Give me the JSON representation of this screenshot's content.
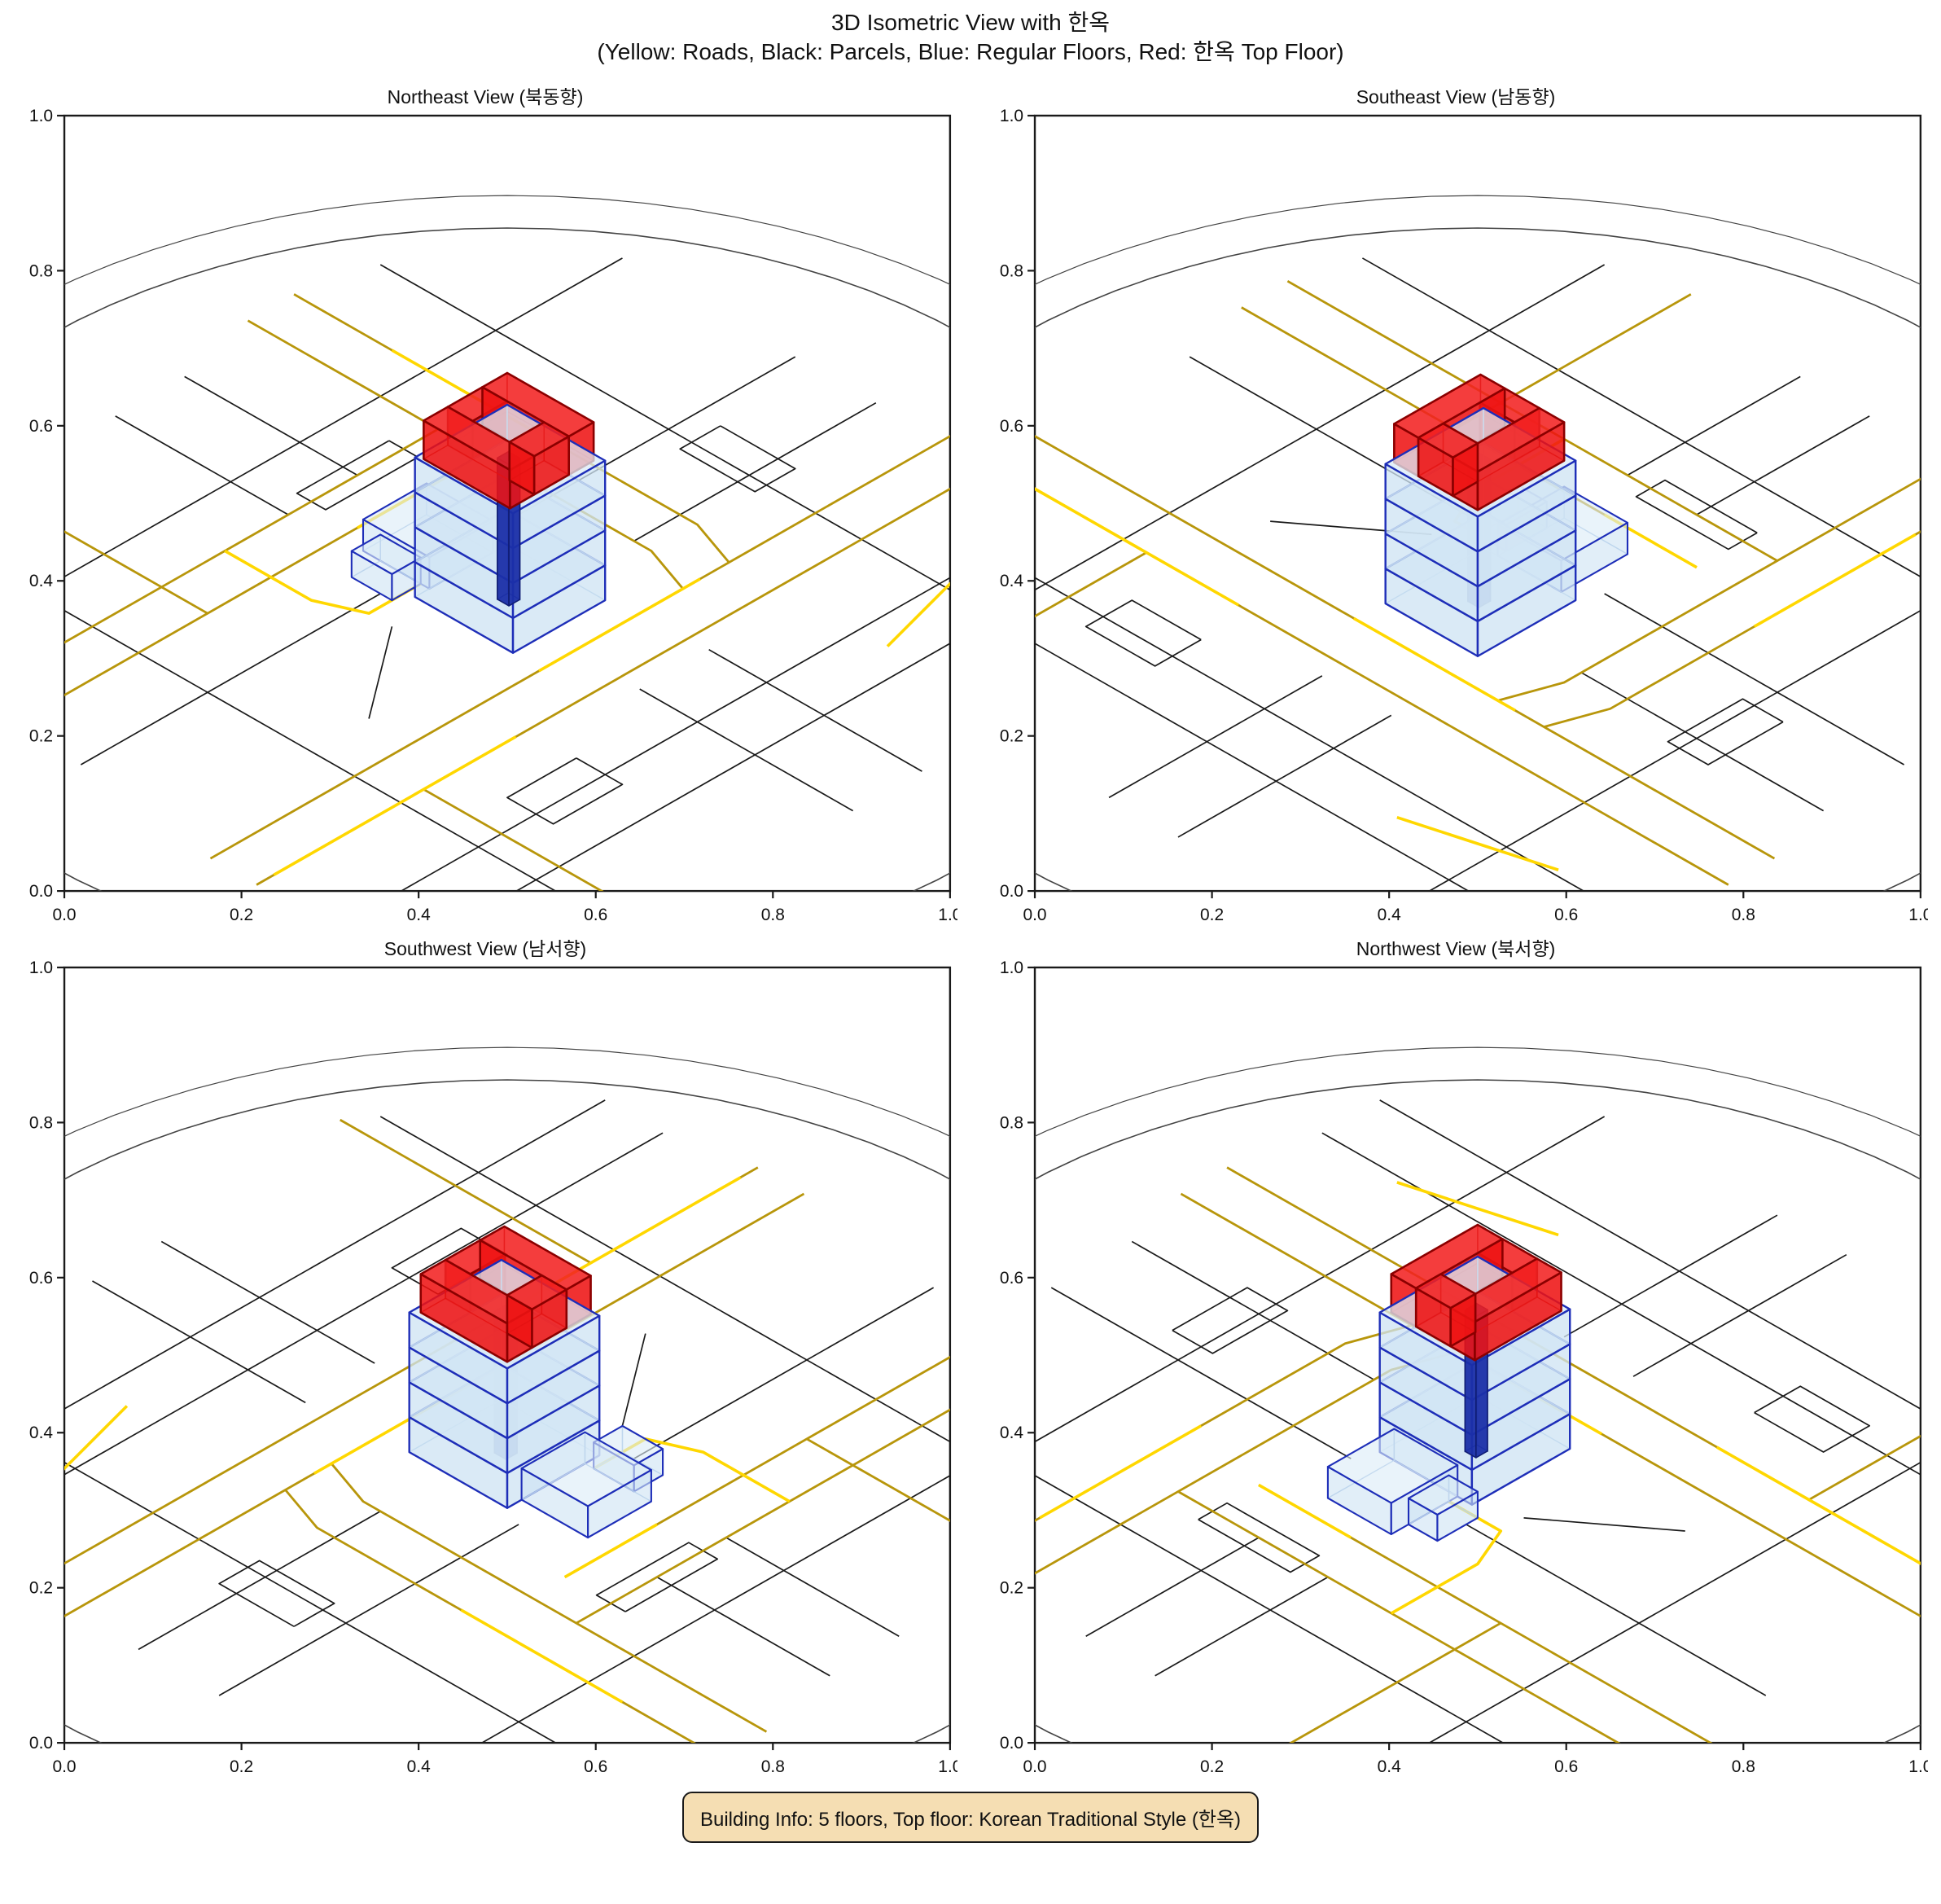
{
  "title": {
    "line1": "3D Isometric View with 한옥",
    "line2": "(Yellow: Roads, Black: Parcels, Blue: Regular Floors, Red: 한옥 Top Floor)"
  },
  "info_box": {
    "text": "Building Info: 5 floors, Top floor: Korean Traditional Style (한옥)",
    "bg_color": "#F5DEB3"
  },
  "chart_data": {
    "type": "3d_isometric_building_views",
    "legend": {
      "yellow": "Roads",
      "black": "Parcels",
      "blue": "Regular Floors",
      "red": "한옥 Top Floor"
    },
    "building": {
      "total_floors": 5,
      "regular_floors": 4,
      "top_floor_style": "Korean Traditional (한옥)",
      "top_floor_shape": "courtyard ring"
    },
    "axis": {
      "min": 0.0,
      "max": 1.0,
      "ticks": [
        0.0,
        0.2,
        0.4,
        0.6,
        0.8,
        1.0
      ],
      "tick_labels": [
        "0.0",
        "0.2",
        "0.4",
        "0.6",
        "0.8",
        "1.0"
      ]
    },
    "views": [
      {
        "id": "northeast",
        "title": "Northeast View (북동향)",
        "azimuth": 45
      },
      {
        "id": "southeast",
        "title": "Southeast View (남동향)",
        "azimuth": 135
      },
      {
        "id": "southwest",
        "title": "Southwest View (남서향)",
        "azimuth": 225
      },
      {
        "id": "northwest",
        "title": "Northwest View (북서향)",
        "azimuth": 315
      }
    ],
    "colors": {
      "road_bright": "#FFD700",
      "road_dark": "#B8960B",
      "parcel": "#1a1a1a",
      "boundary": "#444444",
      "floor_fill": "#cfe3f3",
      "floor_top_fill": "#dcebf7",
      "floor_edge": "#1e2eb8",
      "floor_hidden_edge": "#8fb3dd",
      "core_fill": "#1b2fa8",
      "core_edge": "#101d73",
      "hanok_fill": "#ee1212",
      "hanok_top_fill": "#f22020",
      "hanok_edge": "#8B0000",
      "hanok_hidden_edge": "#a31111"
    },
    "projection": {
      "ground_x_scale": 0.92,
      "ground_y_scale": 0.6,
      "floor_height": 0.045,
      "ground_center_y": 0.625,
      "boundary_radius": 0.8
    },
    "map": {
      "roads": [
        {
          "c": "dark",
          "pts": [
            [
              -0.15,
              0.635
            ],
            [
              1.15,
              0.635
            ]
          ]
        },
        {
          "c": "dark",
          "pts": [
            [
              -0.15,
              0.715
            ],
            [
              1.15,
              0.715
            ]
          ]
        },
        {
          "c": "dark",
          "pts": [
            [
              0.22,
              -0.15
            ],
            [
              0.22,
              0.55
            ],
            [
              0.25,
              0.635
            ]
          ]
        },
        {
          "c": "dark",
          "pts": [
            [
              0.3,
              -0.15
            ],
            [
              0.3,
              0.55
            ],
            [
              0.33,
              0.635
            ]
          ]
        },
        {
          "c": "dark",
          "pts": [
            [
              0.3,
              0.18
            ],
            [
              1.15,
              0.18
            ]
          ]
        },
        {
          "c": "dark",
          "pts": [
            [
              0.36,
              0.26
            ],
            [
              1.15,
              0.26
            ]
          ]
        },
        {
          "c": "dark",
          "pts": [
            [
              0.78,
              -0.15
            ],
            [
              0.78,
              0.26
            ]
          ]
        },
        {
          "c": "dark",
          "pts": [
            [
              0.86,
              0.715
            ],
            [
              0.86,
              1.15
            ]
          ]
        },
        {
          "c": "bright",
          "pts": [
            [
              0.3,
              0.635
            ],
            [
              0.58,
              0.635
            ]
          ]
        },
        {
          "c": "bright",
          "pts": [
            [
              0.22,
              0.02
            ],
            [
              0.22,
              0.3
            ]
          ]
        },
        {
          "c": "bright",
          "pts": [
            [
              0.55,
              0.4
            ],
            [
              0.64,
              0.4
            ],
            [
              0.67,
              0.33
            ],
            [
              0.67,
              0.18
            ]
          ]
        },
        {
          "c": "bright",
          "pts": [
            [
              0.02,
              0.84
            ],
            [
              0.24,
              0.9
            ]
          ]
        },
        {
          "c": "bright",
          "pts": [
            [
              0.7,
              0.715
            ],
            [
              1.12,
              0.715
            ]
          ]
        },
        {
          "c": "bright",
          "pts": [
            [
              0.36,
              0.26
            ],
            [
              0.52,
              0.26
            ]
          ]
        }
      ],
      "parcels": [
        [
          [
            -0.12,
            0.08
          ],
          [
            1.12,
            0.08
          ]
        ],
        [
          [
            -0.12,
            0.38
          ],
          [
            0.4,
            0.38
          ]
        ],
        [
          [
            0.6,
            0.38
          ],
          [
            1.12,
            0.38
          ]
        ],
        [
          [
            -0.12,
            0.52
          ],
          [
            0.3,
            0.52
          ]
        ],
        [
          [
            -0.12,
            0.85
          ],
          [
            1.12,
            0.85
          ]
        ],
        [
          [
            -0.12,
            0.95
          ],
          [
            1.12,
            0.95
          ]
        ],
        [
          [
            0.1,
            -0.12
          ],
          [
            0.1,
            1.12
          ]
        ],
        [
          [
            0.44,
            -0.12
          ],
          [
            0.44,
            0.18
          ]
        ],
        [
          [
            0.56,
            -0.12
          ],
          [
            0.56,
            0.18
          ]
        ],
        [
          [
            0.4,
            0.75
          ],
          [
            0.4,
            1.12
          ]
        ],
        [
          [
            0.52,
            0.75
          ],
          [
            0.52,
            1.12
          ]
        ],
        [
          [
            0.9,
            -0.12
          ],
          [
            0.9,
            1.12
          ]
        ],
        [
          [
            0.64,
            0.44
          ],
          [
            0.8,
            0.56
          ]
        ],
        [
          [
            0.36,
            0.155
          ],
          [
            0.52,
            0.155
          ],
          [
            0.52,
            0.205
          ],
          [
            0.36,
            0.205
          ],
          [
            0.36,
            0.155
          ]
        ],
        [
          [
            0.05,
            0.42
          ],
          [
            0.12,
            0.42
          ],
          [
            0.12,
            0.55
          ],
          [
            0.05,
            0.55
          ],
          [
            0.05,
            0.42
          ]
        ],
        [
          [
            0.68,
            0.8
          ],
          [
            0.8,
            0.8
          ],
          [
            0.8,
            0.88
          ],
          [
            0.68,
            0.88
          ],
          [
            0.68,
            0.8
          ]
        ]
      ]
    },
    "building_boxes": [
      {
        "kind": "annex",
        "u0": 0.44,
        "u1": 0.55,
        "v0": 0.3,
        "v1": 0.415,
        "z0": 0,
        "z1": 0.9
      },
      {
        "kind": "annex",
        "u0": 0.55,
        "u1": 0.6,
        "v0": 0.33,
        "v1": 0.4,
        "z0": 0,
        "z1": 0.75
      },
      {
        "kind": "floor",
        "u0": 0.415,
        "u1": 0.575,
        "v0": 0.415,
        "v1": 0.585,
        "z0": 0,
        "z1": 1
      },
      {
        "kind": "floor",
        "u0": 0.415,
        "u1": 0.575,
        "v0": 0.415,
        "v1": 0.585,
        "z0": 1,
        "z1": 2
      },
      {
        "kind": "floor",
        "u0": 0.415,
        "u1": 0.575,
        "v0": 0.415,
        "v1": 0.585,
        "z0": 2,
        "z1": 3
      },
      {
        "kind": "floor",
        "u0": 0.415,
        "u1": 0.575,
        "v0": 0.415,
        "v1": 0.585,
        "z0": 3,
        "z1": 4
      },
      {
        "kind": "core",
        "u0": 0.488,
        "u1": 0.507,
        "v0": 0.49,
        "v1": 0.51,
        "z0": 0,
        "z1": 4.05
      },
      {
        "kind": "hanok",
        "u0": 0.425,
        "u1": 0.468,
        "v0": 0.425,
        "v1": 0.575,
        "z0": 4,
        "z1": 5.1
      },
      {
        "kind": "hanok",
        "u0": 0.528,
        "u1": 0.57,
        "v0": 0.425,
        "v1": 0.575,
        "z0": 4,
        "z1": 5.1
      },
      {
        "kind": "hanok",
        "u0": 0.468,
        "u1": 0.528,
        "v0": 0.425,
        "v1": 0.468,
        "z0": 4,
        "z1": 5.1
      },
      {
        "kind": "hanok",
        "u0": 0.468,
        "u1": 0.528,
        "v0": 0.532,
        "v1": 0.575,
        "z0": 4,
        "z1": 5.1
      }
    ]
  }
}
